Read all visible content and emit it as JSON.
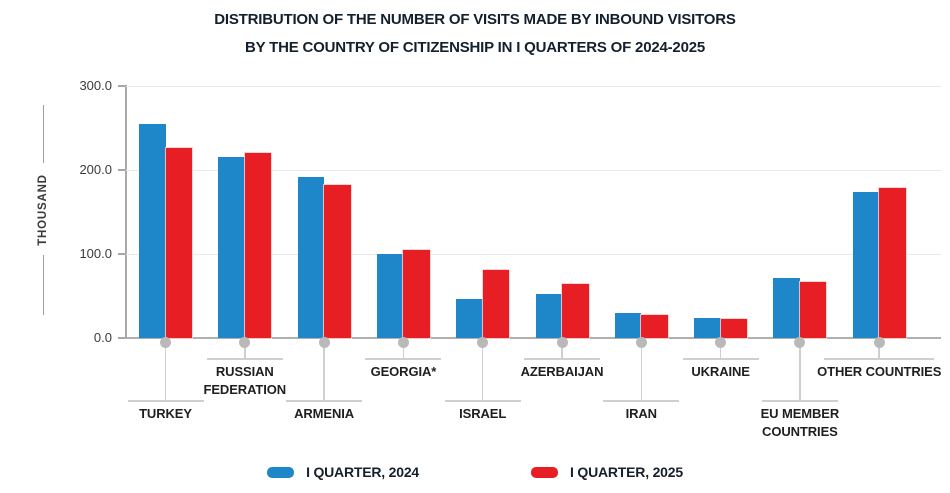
{
  "title": {
    "line1": "DISTRIBUTION OF THE NUMBER OF VISITS MADE BY INBOUND VISITORS",
    "line2": "BY THE COUNTRY OF CITIZENSHIP IN I QUARTERS OF 2024-2025"
  },
  "chart_data": {
    "type": "bar",
    "title": "DISTRIBUTION OF THE NUMBER OF VISITS MADE BY INBOUND VISITORS BY THE COUNTRY OF CITIZENSHIP IN I QUARTERS OF 2024-2025",
    "categories": [
      "TURKEY",
      "RUSSIAN\nFEDERATION",
      "ARMENIA",
      "GEORGIA*",
      "ISRAEL",
      "AZERBAIJAN",
      "IRAN",
      "UKRAINE",
      "EU MEMBER\nCOUNTRIES",
      "OTHER COUNTRIES"
    ],
    "series": [
      {
        "name": "I QUARTER, 2024",
        "color": "#1d87c9",
        "values": [
          255,
          216,
          192,
          100,
          46,
          52,
          30,
          24,
          71,
          174
        ]
      },
      {
        "name": "I QUARTER, 2025",
        "color": "#e81e25",
        "values": [
          226,
          220,
          182,
          105,
          81,
          64,
          27,
          23,
          67,
          179
        ]
      }
    ],
    "y_axis": {
      "title": "THOUSAND",
      "range": [
        0,
        300
      ],
      "ticks": [
        {
          "value": 0,
          "label": "0.0"
        },
        {
          "value": 100,
          "label": "100.0"
        },
        {
          "value": 200,
          "label": "200.0"
        },
        {
          "value": 300,
          "label": "300.0"
        }
      ],
      "grid": true
    },
    "legend_position": "bottom",
    "colors": {
      "grid_line": "#e9e9e9",
      "axis_line": "#b0b0b0",
      "leader_line": "#cfcfcf",
      "dot": "#b9b9b9",
      "label_text": "#1f1f1f"
    }
  }
}
